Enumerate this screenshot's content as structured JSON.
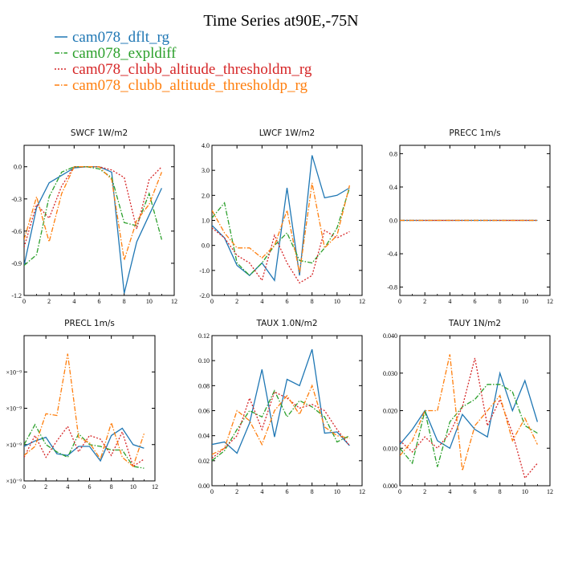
{
  "figure": {
    "title": "Time Series at90E,-75N",
    "legend": [
      {
        "label": "cam078_dflt_rg",
        "color": "#1f77b4",
        "dash": "solid"
      },
      {
        "label": "cam078_expldiff",
        "color": "#2ca02c",
        "dash": "dashdot"
      },
      {
        "label": "cam078_clubb_altitude_thresholdm_rg",
        "color": "#d62728",
        "dash": "dotted"
      },
      {
        "label": "cam078_clubb_altitude_thresholdp_rg",
        "color": "#ff7f0e",
        "dash": "dashdot"
      }
    ]
  },
  "chart_data": [
    {
      "type": "line",
      "title": "SWCF   1W/m2",
      "xlim": [
        0,
        12
      ],
      "ylim": [
        -1.2,
        0.2
      ],
      "xticks": [
        0,
        2,
        4,
        6,
        8,
        10,
        12
      ],
      "xtick_labels": [
        "0",
        "2",
        "4",
        "6",
        "8",
        "10",
        "12"
      ],
      "yticks": [
        -1.2,
        -0.9,
        -0.6,
        -0.3,
        0.0
      ],
      "ytick_labels": [
        "-1.2",
        "-0.9",
        "-0.6",
        "-0.3",
        "0.0"
      ],
      "x": [
        0,
        1,
        2,
        3,
        4,
        5,
        6,
        7,
        8,
        9,
        10,
        11
      ],
      "series": [
        {
          "legend_index": 0,
          "values": [
            -0.92,
            -0.38,
            -0.15,
            -0.08,
            -0.01,
            0.0,
            0.0,
            -0.05,
            -1.18,
            -0.7,
            -0.45,
            -0.2
          ]
        },
        {
          "legend_index": 1,
          "values": [
            -0.92,
            -0.82,
            -0.28,
            -0.05,
            0.0,
            0.0,
            -0.02,
            -0.1,
            -0.52,
            -0.55,
            -0.25,
            -0.68
          ]
        },
        {
          "legend_index": 2,
          "values": [
            -0.75,
            -0.35,
            -0.48,
            -0.18,
            0.0,
            0.0,
            0.0,
            -0.03,
            -0.1,
            -0.58,
            -0.12,
            0.0
          ]
        },
        {
          "legend_index": 3,
          "values": [
            -0.68,
            -0.28,
            -0.7,
            -0.25,
            0.0,
            0.0,
            0.0,
            -0.12,
            -0.87,
            -0.5,
            -0.35,
            -0.05
          ]
        }
      ]
    },
    {
      "type": "line",
      "title": "LWCF   1W/m2",
      "xlim": [
        0,
        12
      ],
      "ylim": [
        -2.0,
        4.0
      ],
      "xticks": [
        0,
        2,
        4,
        6,
        8,
        10,
        12
      ],
      "xtick_labels": [
        "0",
        "2",
        "4",
        "6",
        "8",
        "10",
        "12"
      ],
      "yticks": [
        -2.0,
        -1.0,
        0.0,
        1.0,
        2.0,
        3.0,
        4.0
      ],
      "ytick_labels": [
        "-2.0",
        "-1.0",
        "0.0",
        "1.0",
        "2.0",
        "3.0",
        "4.0"
      ],
      "x": [
        0,
        1,
        2,
        3,
        4,
        5,
        6,
        7,
        8,
        9,
        10,
        11
      ],
      "series": [
        {
          "legend_index": 0,
          "values": [
            0.8,
            0.3,
            -0.8,
            -1.2,
            -0.7,
            -1.4,
            2.3,
            -1.2,
            3.6,
            1.9,
            2.0,
            2.3
          ]
        },
        {
          "legend_index": 1,
          "values": [
            1.1,
            1.7,
            -0.7,
            -1.2,
            -0.7,
            0.0,
            0.5,
            -0.6,
            -0.7,
            -0.1,
            0.7,
            2.3
          ]
        },
        {
          "legend_index": 2,
          "values": [
            0.7,
            0.3,
            -0.4,
            -0.7,
            -1.4,
            0.4,
            -0.7,
            -1.5,
            -1.2,
            0.6,
            0.3,
            0.55
          ]
        },
        {
          "legend_index": 3,
          "values": [
            1.4,
            0.5,
            -0.1,
            -0.1,
            -0.5,
            0.0,
            1.4,
            -1.1,
            2.5,
            -0.1,
            0.4,
            2.4
          ]
        }
      ]
    },
    {
      "type": "line",
      "title": "PRECC   1m/s",
      "xlim": [
        0,
        12
      ],
      "ylim": [
        -0.9,
        0.9
      ],
      "xticks": [
        0,
        2,
        4,
        6,
        8,
        10,
        12
      ],
      "xtick_labels": [
        "0",
        "2",
        "4",
        "6",
        "8",
        "10",
        "12"
      ],
      "yticks": [
        -0.8,
        -0.4,
        0.0,
        0.4,
        0.8
      ],
      "ytick_labels": [
        "-0.8",
        "-0.4",
        "0.0",
        "0.4",
        "0.8"
      ],
      "x": [
        0,
        1,
        2,
        3,
        4,
        5,
        6,
        7,
        8,
        9,
        10,
        11
      ],
      "series": [
        {
          "legend_index": 0,
          "values": [
            0,
            0,
            0,
            0,
            0,
            0,
            0,
            0,
            0,
            0,
            0,
            0
          ]
        },
        {
          "legend_index": 1,
          "values": [
            0,
            0,
            0,
            0,
            0,
            0,
            0,
            0,
            0,
            0,
            0,
            0
          ]
        },
        {
          "legend_index": 2,
          "values": [
            0,
            0,
            0,
            0,
            0,
            0,
            0,
            0,
            0,
            0,
            0,
            0
          ]
        },
        {
          "legend_index": 3,
          "values": [
            0,
            0,
            0,
            0,
            0,
            0,
            0,
            0,
            0,
            0,
            0,
            0
          ]
        }
      ]
    },
    {
      "type": "line",
      "title": "PRECL   1m/s",
      "xlim": [
        0,
        12
      ],
      "ylim": [
        0,
        4
      ],
      "xticks": [
        0,
        2,
        4,
        6,
        8,
        10,
        12
      ],
      "xtick_labels": [
        "0",
        "2",
        "4",
        "6",
        "8",
        "10",
        "12"
      ],
      "yticks": [
        0,
        1,
        2,
        3
      ],
      "ytick_labels": [
        "×10⁻⁹",
        "×10⁻⁹",
        "×10⁻⁹",
        "×10⁻⁹"
      ],
      "x": [
        0,
        1,
        2,
        3,
        4,
        5,
        6,
        7,
        8,
        9,
        10,
        11
      ],
      "series": [
        {
          "legend_index": 0,
          "values": [
            0.95,
            1.1,
            1.2,
            0.75,
            0.7,
            0.95,
            0.95,
            0.55,
            1.25,
            1.45,
            1.0,
            0.9
          ]
        },
        {
          "legend_index": 1,
          "values": [
            1.0,
            1.55,
            1.0,
            0.8,
            0.65,
            1.3,
            1.0,
            0.95,
            0.85,
            0.85,
            0.4,
            0.35
          ]
        },
        {
          "legend_index": 2,
          "values": [
            0.65,
            1.25,
            0.65,
            1.1,
            1.5,
            0.8,
            1.25,
            1.15,
            0.7,
            1.35,
            0.4,
            0.6
          ]
        },
        {
          "legend_index": 3,
          "values": [
            0.7,
            0.95,
            1.85,
            1.8,
            3.5,
            1.2,
            1.05,
            0.6,
            1.6,
            0.65,
            0.4,
            1.3
          ]
        }
      ]
    },
    {
      "type": "line",
      "title": "TAUX   1.0N/m2",
      "xlim": [
        0,
        12
      ],
      "ylim": [
        0.0,
        0.12
      ],
      "xticks": [
        0,
        2,
        4,
        6,
        8,
        10,
        12
      ],
      "xtick_labels": [
        "0",
        "2",
        "4",
        "6",
        "8",
        "10",
        "12"
      ],
      "yticks": [
        0.0,
        0.02,
        0.04,
        0.06,
        0.08,
        0.1,
        0.12
      ],
      "ytick_labels": [
        "0.00",
        "0.02",
        "0.04",
        "0.06",
        "0.08",
        "0.10",
        "0.12"
      ],
      "x": [
        0,
        1,
        2,
        3,
        4,
        5,
        6,
        7,
        8,
        9,
        10,
        11
      ],
      "series": [
        {
          "legend_index": 0,
          "values": [
            0.033,
            0.035,
            0.026,
            0.05,
            0.093,
            0.039,
            0.085,
            0.08,
            0.109,
            0.042,
            0.043,
            0.032
          ]
        },
        {
          "legend_index": 1,
          "values": [
            0.02,
            0.028,
            0.045,
            0.06,
            0.055,
            0.076,
            0.055,
            0.068,
            0.063,
            0.055,
            0.035,
            0.04
          ]
        },
        {
          "legend_index": 2,
          "values": [
            0.022,
            0.03,
            0.04,
            0.07,
            0.045,
            0.075,
            0.07,
            0.062,
            0.065,
            0.06,
            0.045,
            0.032
          ]
        },
        {
          "legend_index": 3,
          "values": [
            0.025,
            0.03,
            0.06,
            0.052,
            0.033,
            0.06,
            0.072,
            0.057,
            0.08,
            0.047,
            0.04,
            0.038
          ]
        }
      ]
    },
    {
      "type": "line",
      "title": "TAUY   1N/m2",
      "xlim": [
        0,
        12
      ],
      "ylim": [
        0.0,
        0.04
      ],
      "xticks": [
        0,
        2,
        4,
        6,
        8,
        10,
        12
      ],
      "xtick_labels": [
        "0",
        "2",
        "4",
        "6",
        "8",
        "10",
        "12"
      ],
      "yticks": [
        0.0,
        0.01,
        0.02,
        0.03,
        0.04
      ],
      "ytick_labels": [
        "0.000",
        "0.010",
        "0.020",
        "0.030",
        "0.040"
      ],
      "x": [
        0,
        1,
        2,
        3,
        4,
        5,
        6,
        7,
        8,
        9,
        10,
        11
      ],
      "series": [
        {
          "legend_index": 0,
          "values": [
            0.011,
            0.015,
            0.02,
            0.012,
            0.01,
            0.019,
            0.015,
            0.013,
            0.03,
            0.02,
            0.028,
            0.017
          ]
        },
        {
          "legend_index": 1,
          "values": [
            0.01,
            0.006,
            0.02,
            0.005,
            0.017,
            0.021,
            0.023,
            0.027,
            0.027,
            0.025,
            0.016,
            0.014
          ]
        },
        {
          "legend_index": 2,
          "values": [
            0.012,
            0.009,
            0.013,
            0.01,
            0.014,
            0.021,
            0.034,
            0.016,
            0.023,
            0.014,
            0.002,
            0.006
          ]
        },
        {
          "legend_index": 3,
          "values": [
            0.008,
            0.012,
            0.02,
            0.02,
            0.035,
            0.004,
            0.016,
            0.02,
            0.024,
            0.012,
            0.018,
            0.011
          ]
        }
      ]
    }
  ]
}
